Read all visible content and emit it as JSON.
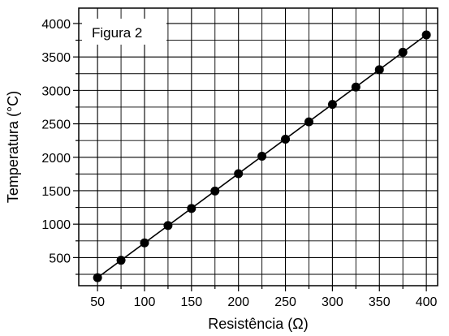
{
  "chart_data": {
    "type": "scatter",
    "annotation": "Figura 2",
    "xlabel": "Resistência (Ω)",
    "ylabel": "Temperatura (°C)",
    "xlim": [
      30,
      412
    ],
    "ylim": [
      80,
      4230
    ],
    "x_ticks": [
      50,
      100,
      150,
      200,
      250,
      300,
      350,
      400
    ],
    "y_ticks": [
      500,
      1000,
      1500,
      2000,
      2500,
      3000,
      3500,
      4000
    ],
    "grid": true,
    "legend": "none",
    "series": [
      {
        "x": [
          50,
          75,
          100,
          125,
          150,
          175,
          200,
          225,
          250,
          275,
          300,
          325,
          350,
          375,
          400
        ],
        "y": [
          200,
          460,
          720,
          980,
          1235,
          1495,
          1755,
          2015,
          2270,
          2530,
          2790,
          3050,
          3310,
          3570,
          3830
        ],
        "marker_color": "#000000",
        "line_color": "#000000",
        "fit_line": true
      }
    ]
  }
}
